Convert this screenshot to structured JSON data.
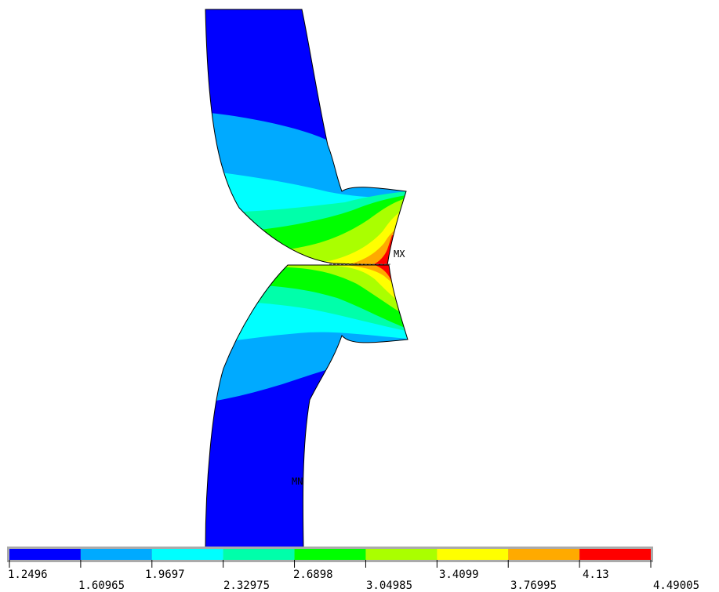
{
  "plot": {
    "max_marker": "MX",
    "min_marker": "MN"
  },
  "legend": {
    "colors": [
      "#0000ff",
      "#00aaff",
      "#00ffff",
      "#00ffaa",
      "#00ff00",
      "#aaff00",
      "#ffff00",
      "#ffaa00",
      "#ff0000"
    ],
    "values_upper": [
      "1.2496",
      "1.9697",
      "2.6898",
      "3.4099",
      "4.13"
    ],
    "values_lower": [
      "1.60965",
      "2.32975",
      "3.04985",
      "3.76995",
      "4.49005"
    ]
  }
}
